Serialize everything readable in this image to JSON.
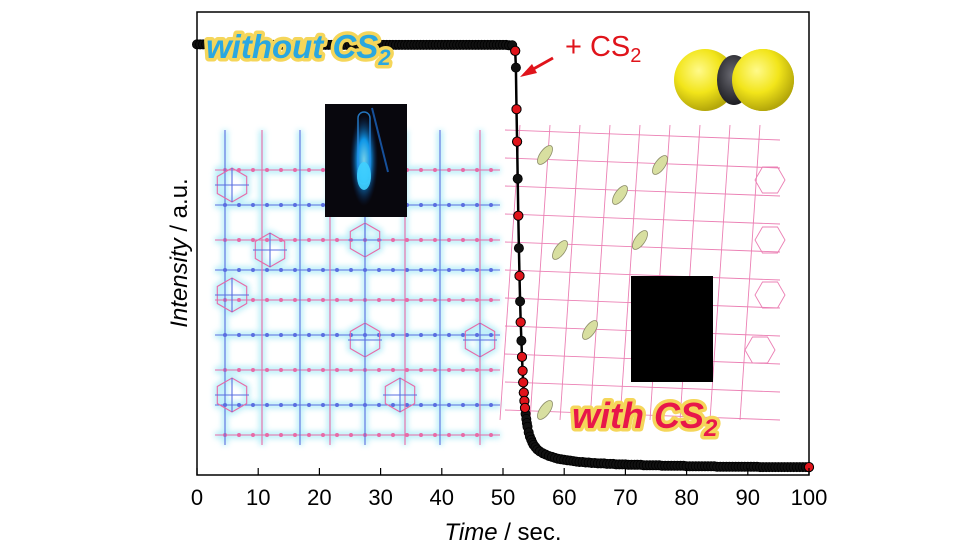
{
  "chart_data": {
    "type": "scatter",
    "title": "",
    "xlabel": {
      "main": "Time",
      "unit": " / sec."
    },
    "ylabel": {
      "main": "Intensity",
      "unit": " / a.u."
    },
    "xlim": [
      0,
      100
    ],
    "ylim": [
      0,
      1
    ],
    "x_ticks": [
      0,
      10,
      20,
      30,
      40,
      50,
      60,
      70,
      80,
      90,
      100
    ],
    "y_ticks": [],
    "grid": false,
    "series": [
      {
        "line_color": "#000000",
        "marker_color": "#111111",
        "highlight_color": "#e0141b",
        "points": [
          [
            0,
            0.93
          ],
          [
            0.5,
            0.93
          ],
          [
            1,
            0.93
          ],
          [
            1.5,
            0.93
          ],
          [
            2,
            0.93
          ],
          [
            2.5,
            0.93
          ],
          [
            3,
            0.93
          ],
          [
            3.5,
            0.93
          ],
          [
            4,
            0.93
          ],
          [
            4.5,
            0.93
          ],
          [
            5,
            0.93
          ],
          [
            5.5,
            0.93
          ],
          [
            6,
            0.929
          ],
          [
            6.5,
            0.929
          ],
          [
            7,
            0.929
          ],
          [
            7.5,
            0.929
          ],
          [
            8,
            0.929
          ],
          [
            8.5,
            0.929
          ],
          [
            9,
            0.929
          ],
          [
            9.5,
            0.929
          ],
          [
            10,
            0.929
          ],
          [
            10.5,
            0.929
          ],
          [
            11,
            0.929
          ],
          [
            11.5,
            0.929
          ],
          [
            12,
            0.929
          ],
          [
            12.5,
            0.929
          ],
          [
            13,
            0.929
          ],
          [
            13.5,
            0.929
          ],
          [
            14,
            0.929
          ],
          [
            14.5,
            0.929
          ],
          [
            15,
            0.929
          ],
          [
            15.5,
            0.929
          ],
          [
            16,
            0.929
          ],
          [
            16.5,
            0.929
          ],
          [
            17,
            0.929
          ],
          [
            17.5,
            0.929
          ],
          [
            18,
            0.929
          ],
          [
            18.5,
            0.929
          ],
          [
            19,
            0.929
          ],
          [
            19.5,
            0.929
          ],
          [
            20,
            0.929
          ],
          [
            20.5,
            0.929
          ],
          [
            21,
            0.929
          ],
          [
            21.5,
            0.929
          ],
          [
            22,
            0.929
          ],
          [
            22.5,
            0.929
          ],
          [
            23,
            0.929
          ],
          [
            23.5,
            0.929
          ],
          [
            24,
            0.929
          ],
          [
            24.5,
            0.929
          ],
          [
            25,
            0.929
          ],
          [
            25.5,
            0.929
          ],
          [
            26,
            0.929
          ],
          [
            26.5,
            0.929
          ],
          [
            27,
            0.929
          ],
          [
            27.5,
            0.929
          ],
          [
            28,
            0.929
          ],
          [
            28.5,
            0.929
          ],
          [
            29,
            0.929
          ],
          [
            29.5,
            0.929
          ],
          [
            30,
            0.929
          ],
          [
            30.5,
            0.929
          ],
          [
            31,
            0.929
          ],
          [
            31.5,
            0.929
          ],
          [
            32,
            0.929
          ],
          [
            32.5,
            0.929
          ],
          [
            33,
            0.929
          ],
          [
            33.5,
            0.929
          ],
          [
            34,
            0.929
          ],
          [
            34.5,
            0.929
          ],
          [
            35,
            0.929
          ],
          [
            35.5,
            0.929
          ],
          [
            36,
            0.929
          ],
          [
            36.5,
            0.929
          ],
          [
            37,
            0.929
          ],
          [
            37.5,
            0.929
          ],
          [
            38,
            0.929
          ],
          [
            38.5,
            0.929
          ],
          [
            39,
            0.929
          ],
          [
            39.5,
            0.929
          ],
          [
            40,
            0.929
          ],
          [
            40.5,
            0.929
          ],
          [
            41,
            0.929
          ],
          [
            41.5,
            0.929
          ],
          [
            42,
            0.929
          ],
          [
            42.5,
            0.929
          ],
          [
            43,
            0.929
          ],
          [
            43.5,
            0.929
          ],
          [
            44,
            0.929
          ],
          [
            44.5,
            0.929
          ],
          [
            45,
            0.929
          ],
          [
            45.5,
            0.929
          ],
          [
            46,
            0.929
          ],
          [
            46.5,
            0.929
          ],
          [
            47,
            0.929
          ],
          [
            47.5,
            0.929
          ],
          [
            48,
            0.929
          ],
          [
            48.5,
            0.929
          ],
          [
            49,
            0.929
          ],
          [
            49.5,
            0.929
          ],
          [
            50,
            0.929
          ],
          [
            50.5,
            0.929
          ],
          [
            51,
            0.928
          ],
          [
            51.5,
            0.928
          ],
          [
            52.0,
            0.916
          ],
          [
            52.1,
            0.88
          ],
          [
            52.2,
            0.79
          ],
          [
            52.3,
            0.72
          ],
          [
            52.4,
            0.64
          ],
          [
            52.5,
            0.56
          ],
          [
            52.6,
            0.49
          ],
          [
            52.7,
            0.43
          ],
          [
            52.8,
            0.375
          ],
          [
            52.9,
            0.33
          ],
          [
            53.0,
            0.29
          ],
          [
            53.1,
            0.255
          ],
          [
            53.2,
            0.225
          ],
          [
            53.3,
            0.2
          ],
          [
            53.4,
            0.178
          ],
          [
            53.5,
            0.16
          ],
          [
            53.6,
            0.145
          ],
          [
            53.7,
            0.132
          ],
          [
            53.8,
            0.121
          ],
          [
            53.9,
            0.112
          ],
          [
            54.0,
            0.104
          ],
          [
            54.2,
            0.092
          ],
          [
            54.4,
            0.083
          ],
          [
            54.6,
            0.076
          ],
          [
            54.8,
            0.07
          ],
          [
            55.0,
            0.065
          ],
          [
            55.3,
            0.06
          ],
          [
            55.6,
            0.055
          ],
          [
            56.0,
            0.051
          ],
          [
            56.5,
            0.047
          ],
          [
            57,
            0.044
          ],
          [
            57.5,
            0.041
          ],
          [
            58,
            0.039
          ],
          [
            58.5,
            0.037
          ],
          [
            59,
            0.035
          ],
          [
            59.5,
            0.034
          ],
          [
            60,
            0.033
          ],
          [
            60.5,
            0.032
          ],
          [
            61,
            0.031
          ],
          [
            61.5,
            0.03
          ],
          [
            62,
            0.029
          ],
          [
            62.5,
            0.028
          ],
          [
            63,
            0.028
          ],
          [
            63.5,
            0.027
          ],
          [
            64,
            0.027
          ],
          [
            64.5,
            0.026
          ],
          [
            65,
            0.026
          ],
          [
            65.5,
            0.025
          ],
          [
            66,
            0.025
          ],
          [
            66.5,
            0.025
          ],
          [
            67,
            0.024
          ],
          [
            67.5,
            0.024
          ],
          [
            68,
            0.024
          ],
          [
            68.5,
            0.023
          ],
          [
            69,
            0.023
          ],
          [
            69.5,
            0.023
          ],
          [
            70,
            0.023
          ],
          [
            70.5,
            0.022
          ],
          [
            71,
            0.022
          ],
          [
            71.5,
            0.022
          ],
          [
            72,
            0.022
          ],
          [
            72.5,
            0.022
          ],
          [
            73,
            0.021
          ],
          [
            73.5,
            0.021
          ],
          [
            74,
            0.021
          ],
          [
            74.5,
            0.021
          ],
          [
            75,
            0.021
          ],
          [
            75.5,
            0.021
          ],
          [
            76,
            0.02
          ],
          [
            76.5,
            0.02
          ],
          [
            77,
            0.02
          ],
          [
            77.5,
            0.02
          ],
          [
            78,
            0.02
          ],
          [
            78.5,
            0.02
          ],
          [
            79,
            0.02
          ],
          [
            79.5,
            0.02
          ],
          [
            80,
            0.019
          ],
          [
            80.5,
            0.019
          ],
          [
            81,
            0.019
          ],
          [
            81.5,
            0.019
          ],
          [
            82,
            0.019
          ],
          [
            82.5,
            0.019
          ],
          [
            83,
            0.019
          ],
          [
            83.5,
            0.019
          ],
          [
            84,
            0.019
          ],
          [
            84.5,
            0.019
          ],
          [
            85,
            0.018
          ],
          [
            85.5,
            0.018
          ],
          [
            86,
            0.018
          ],
          [
            86.5,
            0.018
          ],
          [
            87,
            0.018
          ],
          [
            87.5,
            0.018
          ],
          [
            88,
            0.018
          ],
          [
            88.5,
            0.018
          ],
          [
            89,
            0.018
          ],
          [
            89.5,
            0.018
          ],
          [
            90,
            0.018
          ],
          [
            90.5,
            0.018
          ],
          [
            91,
            0.018
          ],
          [
            91.5,
            0.018
          ],
          [
            92,
            0.017
          ],
          [
            92.5,
            0.017
          ],
          [
            93,
            0.017
          ],
          [
            93.5,
            0.017
          ],
          [
            94,
            0.017
          ],
          [
            94.5,
            0.017
          ],
          [
            95,
            0.017
          ],
          [
            95.5,
            0.017
          ],
          [
            96,
            0.017
          ],
          [
            96.5,
            0.017
          ],
          [
            97,
            0.017
          ],
          [
            97.5,
            0.017
          ],
          [
            98,
            0.017
          ],
          [
            98.5,
            0.017
          ],
          [
            99,
            0.017
          ],
          [
            99.5,
            0.017
          ],
          [
            100,
            0.017
          ]
        ],
        "highlighted": [
          [
            52.0,
            0.916
          ],
          [
            52.2,
            0.79
          ],
          [
            52.3,
            0.72
          ],
          [
            52.5,
            0.56
          ],
          [
            52.7,
            0.43
          ],
          [
            52.9,
            0.33
          ],
          [
            53.1,
            0.255
          ],
          [
            53.2,
            0.225
          ],
          [
            53.3,
            0.2
          ],
          [
            53.4,
            0.178
          ],
          [
            53.5,
            0.16
          ],
          [
            53.6,
            0.145
          ],
          [
            100,
            0.017
          ]
        ]
      }
    ],
    "annotations": [
      {
        "text": "without CS",
        "subscript": "2",
        "color": "#2aa7e0",
        "outline": "#f5d65a"
      },
      {
        "text": "+ CS",
        "subscript": "2",
        "color": "#e0141b",
        "arrow_to": [
          52,
          0.93
        ]
      },
      {
        "text": "with CS",
        "subscript": "2",
        "color": "#e8174a",
        "outline": "#f5d65a"
      }
    ]
  },
  "background_structure": {
    "left_colors": [
      "#e86aa7",
      "#5a6ee0",
      "#a7eaf7"
    ],
    "right_colors": [
      "#e86aa7",
      "#5a6ee0",
      "#d8dfa0"
    ]
  },
  "insets": {
    "vial_photo": {
      "background": "#08070d",
      "glow": "#0fa6ff"
    },
    "dark_photo": {
      "background": "#000000"
    },
    "molecule": {
      "atoms": [
        "#f2e51a",
        "#2f2f35",
        "#f2e51a"
      ]
    }
  }
}
